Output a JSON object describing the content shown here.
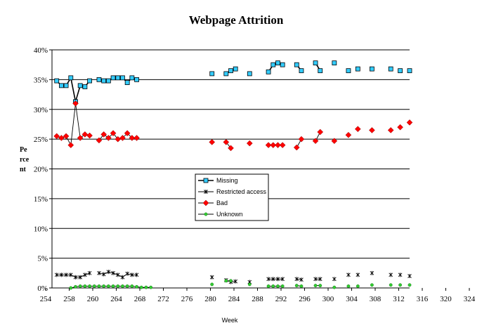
{
  "chart_data": {
    "type": "line",
    "title": "Webpage Attrition",
    "xlabel": "Week",
    "ylabel": "Percent",
    "ylabel_lines": [
      "Pe",
      "rce",
      "nt"
    ],
    "xlim": [
      254,
      330
    ],
    "ylim": [
      0,
      40
    ],
    "x_ticks": [
      254,
      258,
      260,
      264,
      268,
      272,
      276,
      280,
      284,
      288,
      292,
      296,
      300,
      304,
      308,
      312,
      316,
      320,
      324
    ],
    "y_ticks": [
      0,
      5,
      10,
      15,
      20,
      25,
      30,
      35,
      40
    ],
    "y_tick_labels": [
      "0%",
      "5%",
      "10%",
      "15%",
      "20%",
      "25%",
      "30%",
      "35%",
      "40%"
    ],
    "grid": "horizontal",
    "legend_position": "center",
    "series": [
      {
        "name": "Missing",
        "color": "#33ccff",
        "line_color": "#000000",
        "marker": "square",
        "points": [
          [
            255,
            34.8
          ],
          [
            256,
            34.0
          ],
          [
            257,
            34.0
          ],
          [
            258,
            35.3
          ],
          [
            259,
            31.3
          ],
          [
            260,
            34.0
          ],
          [
            261,
            33.8
          ],
          [
            262,
            34.8
          ],
          [
            264,
            35.0
          ],
          [
            265,
            34.8
          ],
          [
            266,
            34.8
          ],
          [
            267,
            35.3
          ],
          [
            268,
            35.3
          ],
          [
            269,
            35.3
          ],
          [
            270,
            34.5
          ],
          [
            271,
            35.3
          ],
          [
            272,
            35.0
          ],
          [
            288,
            36.0
          ],
          [
            291,
            36.0
          ],
          [
            292,
            36.5
          ],
          [
            293,
            36.8
          ],
          [
            296,
            36.0
          ],
          [
            300,
            36.3
          ],
          [
            301,
            37.5
          ],
          [
            302,
            37.8
          ],
          [
            303,
            37.5
          ],
          [
            306,
            37.5
          ],
          [
            307,
            36.5
          ],
          [
            310,
            37.8
          ],
          [
            311,
            36.5
          ],
          [
            314,
            37.8
          ],
          [
            317,
            36.5
          ],
          [
            319,
            36.8
          ],
          [
            322,
            36.8
          ],
          [
            326,
            36.8
          ],
          [
            328,
            36.5
          ],
          [
            330,
            36.5
          ]
        ]
      },
      {
        "name": "Restricted access",
        "color": "#000000",
        "line_color": "#000000",
        "marker": "star",
        "points": [
          [
            255,
            2.2
          ],
          [
            256,
            2.2
          ],
          [
            257,
            2.2
          ],
          [
            258,
            2.2
          ],
          [
            259,
            1.8
          ],
          [
            260,
            1.8
          ],
          [
            261,
            2.2
          ],
          [
            262,
            2.5
          ],
          [
            264,
            2.5
          ],
          [
            265,
            2.3
          ],
          [
            266,
            2.7
          ],
          [
            267,
            2.5
          ],
          [
            268,
            2.2
          ],
          [
            269,
            1.8
          ],
          [
            270,
            2.4
          ],
          [
            271,
            2.2
          ],
          [
            272,
            2.2
          ],
          [
            288,
            1.8
          ],
          [
            291,
            1.3
          ],
          [
            292,
            1.0
          ],
          [
            293,
            1.1
          ],
          [
            296,
            1.0
          ],
          [
            300,
            1.5
          ],
          [
            301,
            1.5
          ],
          [
            302,
            1.5
          ],
          [
            303,
            1.5
          ],
          [
            306,
            1.5
          ],
          [
            307,
            1.4
          ],
          [
            310,
            1.5
          ],
          [
            311,
            1.5
          ],
          [
            314,
            1.5
          ],
          [
            317,
            2.2
          ],
          [
            319,
            2.2
          ],
          [
            322,
            2.5
          ],
          [
            326,
            2.2
          ],
          [
            328,
            2.2
          ],
          [
            330,
            2.0
          ]
        ]
      },
      {
        "name": "Bad",
        "color": "#ff0000",
        "line_color": "#000000",
        "marker": "diamond",
        "points": [
          [
            255,
            25.5
          ],
          [
            256,
            25.2
          ],
          [
            257,
            25.5
          ],
          [
            258,
            24.0
          ],
          [
            259,
            31.0
          ],
          [
            260,
            25.2
          ],
          [
            261,
            25.8
          ],
          [
            262,
            25.6
          ],
          [
            264,
            24.8
          ],
          [
            265,
            25.8
          ],
          [
            266,
            25.2
          ],
          [
            267,
            26.0
          ],
          [
            268,
            25.0
          ],
          [
            269,
            25.2
          ],
          [
            270,
            26.0
          ],
          [
            271,
            25.2
          ],
          [
            272,
            25.2
          ],
          [
            288,
            24.5
          ],
          [
            291,
            24.5
          ],
          [
            292,
            23.5
          ],
          [
            296,
            24.3
          ],
          [
            300,
            24.0
          ],
          [
            301,
            24.0
          ],
          [
            302,
            24.0
          ],
          [
            303,
            24.0
          ],
          [
            306,
            23.6
          ],
          [
            307,
            25.0
          ],
          [
            310,
            24.7
          ],
          [
            311,
            26.2
          ],
          [
            314,
            24.7
          ],
          [
            317,
            25.7
          ],
          [
            319,
            26.7
          ],
          [
            322,
            26.5
          ],
          [
            326,
            26.5
          ],
          [
            328,
            27.0
          ],
          [
            330,
            27.8
          ]
        ]
      },
      {
        "name": "Unknown",
        "color": "#33cc33",
        "line_color": "#000000",
        "marker": "cross",
        "points": [
          [
            258,
            0.0
          ],
          [
            259,
            0.2
          ],
          [
            260,
            0.3
          ],
          [
            261,
            0.3
          ],
          [
            262,
            0.3
          ],
          [
            263,
            0.3
          ],
          [
            264,
            0.3
          ],
          [
            265,
            0.3
          ],
          [
            266,
            0.3
          ],
          [
            267,
            0.3
          ],
          [
            268,
            0.3
          ],
          [
            269,
            0.3
          ],
          [
            270,
            0.3
          ],
          [
            271,
            0.3
          ],
          [
            272,
            0.2
          ],
          [
            273,
            0.1
          ],
          [
            274,
            0.1
          ],
          [
            275,
            0.1
          ],
          [
            288,
            0.6
          ],
          [
            291,
            1.2
          ],
          [
            292,
            1.2
          ],
          [
            296,
            0.6
          ],
          [
            300,
            0.3
          ],
          [
            301,
            0.3
          ],
          [
            302,
            0.3
          ],
          [
            303,
            0.3
          ],
          [
            306,
            0.4
          ],
          [
            307,
            0.3
          ],
          [
            310,
            0.4
          ],
          [
            311,
            0.4
          ],
          [
            314,
            0.1
          ],
          [
            317,
            0.3
          ],
          [
            319,
            0.3
          ],
          [
            322,
            0.5
          ],
          [
            326,
            0.5
          ],
          [
            328,
            0.5
          ],
          [
            330,
            0.5
          ]
        ]
      }
    ]
  }
}
